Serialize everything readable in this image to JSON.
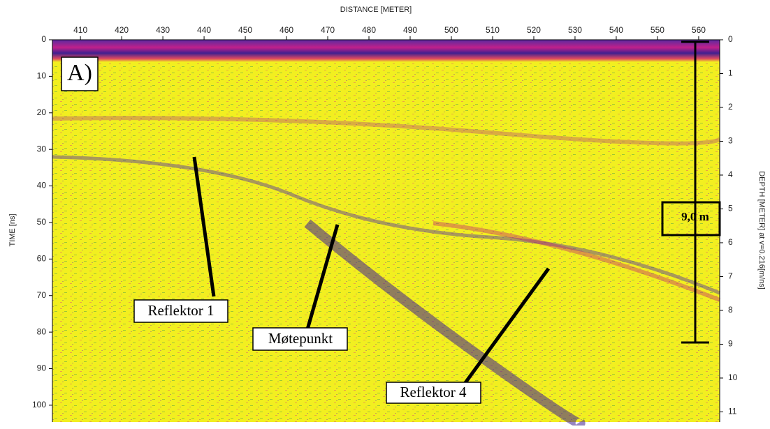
{
  "chart_data": {
    "type": "radargram",
    "x_label": "DISTANCE [METER]",
    "y_label": "TIME [ns]",
    "y2_label": "DEPTH [METER] at v=0.216[m/ns]",
    "xlim": [
      403.2,
      565.1
    ],
    "xticks": [
      410,
      420,
      430,
      440,
      450,
      460,
      470,
      480,
      490,
      500,
      510,
      520,
      530,
      540,
      550,
      560
    ],
    "ylim": [
      0,
      104.6
    ],
    "yticks": [
      0,
      10,
      20,
      30,
      40,
      50,
      60,
      70,
      80,
      90,
      100
    ],
    "y2lim": [
      0,
      11.3
    ],
    "y2ticks": [
      0,
      1,
      2,
      3,
      4,
      5,
      6,
      7,
      8,
      9,
      10,
      11
    ],
    "annotations": {
      "panel": "A)",
      "reflektor_1": "Reflektor 1",
      "motepunkt": "Møtepunkt",
      "reflektor_4": "Reflektor 4",
      "scale": "9,0 m"
    }
  }
}
